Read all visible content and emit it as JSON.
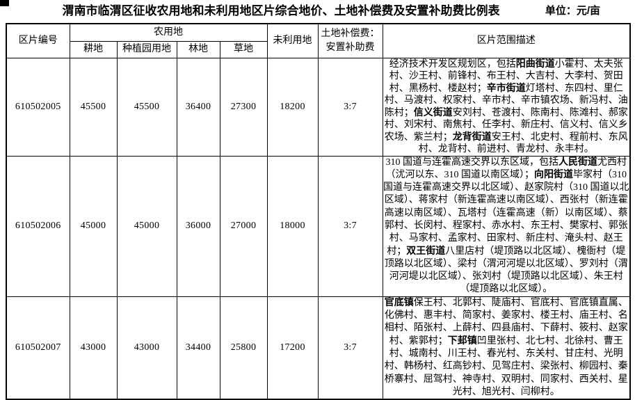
{
  "title": "渭南市临渭区征收农用地和未利用地区片综合地价、土地补偿费及安置补助费比例表",
  "unit_label": "单位：元/亩",
  "colors": {
    "border": "#000000",
    "text": "#000000",
    "background": "#ffffff"
  },
  "table": {
    "headers": {
      "code": "区片编号",
      "agri_group": "农用地",
      "cultivated": "耕地",
      "plantation": "种植园用地",
      "forest": "林地",
      "grass": "草地",
      "unused": "未利用地",
      "ratio_line1": "土地补偿费：",
      "ratio_line2": "安置补助费",
      "desc": "区片范围描述"
    },
    "rows": [
      {
        "code": "610502005",
        "cultivated": "45500",
        "plantation": "45500",
        "forest": "36400",
        "grass": "27300",
        "unused": "18200",
        "ratio": "3:7",
        "desc_segments": [
          {
            "t": "经济技术开发区规划区，包括",
            "b": false
          },
          {
            "t": "阳曲街道",
            "b": true
          },
          {
            "t": "小霍村、太夫张村、沙王村、前锋村、布王村、大吉村、大李村、贺田村、黑杨村、楼赵村；",
            "b": false
          },
          {
            "t": "辛市街道",
            "b": true
          },
          {
            "t": "灯塔村、东四村、里仁村、马渡村、权家村、辛市村、辛市镇农场、新冯村、油陈村；",
            "b": false
          },
          {
            "t": "信义街道",
            "b": true
          },
          {
            "t": "安刘村、苍渡村、陈南村、陈滩村、郝家村、刘宋村、南焦村、任李村、新庄村、信义村、信义乡农场、紫兰村；",
            "b": false
          },
          {
            "t": "龙背街道",
            "b": true
          },
          {
            "t": "安王村、北史村、程前村、东风村、龙背村、前进村、青龙村、永丰村。",
            "b": false
          }
        ]
      },
      {
        "code": "610502006",
        "cultivated": "45000",
        "plantation": "45000",
        "forest": "36000",
        "grass": "27000",
        "unused": "18000",
        "ratio": "3:7",
        "desc_segments": [
          {
            "t": "310 国道与连霍高速交界以东区域，包括",
            "b": false
          },
          {
            "t": "人民街道",
            "b": true
          },
          {
            "t": "尤西村（沋河以东、310 国道以南区域）；",
            "b": false
          },
          {
            "t": "向阳街道",
            "b": true
          },
          {
            "t": "毕家村（310 国道与连霍高速交界以北区域）、赵家院村（310 国道以北区域）、蒋家村（新连霍高速以南区域）、西张村（新连霍高速以南区域）、瓦塔村（连霍高速（新）以南区域）、蔡郭村、长闵村、程家村、赤水村、东王村、樊家村、郭张村、马家村、孟家村、田家村、新庄村、淹头村、赵王村；",
            "b": false
          },
          {
            "t": "双王街道",
            "b": true
          },
          {
            "t": "八里店村（堤顶路以北区域）、槐衙村（堤顶路以北区域）、梁村（渭河河堤以北区域）、罗刘村（渭河河堤以北区域）、张刘村（堤顶路以北区域）、朱王村（堤顶路以北区域）。",
            "b": false
          }
        ]
      },
      {
        "code": "610502007",
        "cultivated": "43000",
        "plantation": "43000",
        "forest": "34400",
        "grass": "25800",
        "unused": "17200",
        "ratio": "3:7",
        "desc_segments": [
          {
            "t": "官底镇",
            "b": true
          },
          {
            "t": "保王村、北郭村、陡庙村、官底村、官底镇直属、化佛村、惠丰村、简家村、姜家村、楼王村、庙王村、名相村、陌张村、上薛村、四县庙村、下薛村、筱村、赵家村、紫郭村；",
            "b": false
          },
          {
            "t": "下邽镇",
            "b": true
          },
          {
            "t": "凹里张村、北七村、北徐村、曹王村、城南村、川王村、春光村、东关村、甘庄村、光明村、韩杨村、红高钞村、见驾庄村、梁张村、柳园村、秦桥寨村、屈驾村、神寺村、双明村、同家村、西关村、星光村、旭光村、闫柳村。",
            "b": false
          }
        ]
      }
    ]
  }
}
